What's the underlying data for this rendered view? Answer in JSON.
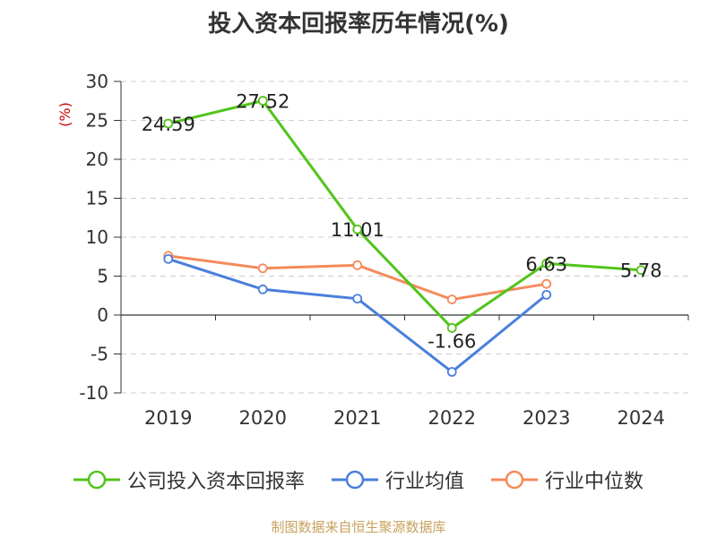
{
  "title": "投入资本回报率历年情况(%)",
  "source": "制图数据来自恒生聚源数据库",
  "colors": {
    "company": "#52c41a",
    "industry_avg": "#4a7fdc",
    "industry_median": "#f58a5b",
    "axis": "#333333",
    "grid": "#cccccc",
    "unit": "#cc0000"
  },
  "chart_data": {
    "type": "line",
    "title": "投入资本回报率历年情况(%)",
    "categories": [
      "2019",
      "2020",
      "2021",
      "2022",
      "2023",
      "2024"
    ],
    "ylabel": "(%)",
    "ylim": [
      -10,
      30
    ],
    "yticks": [
      30,
      25,
      20,
      15,
      10,
      5,
      0,
      -5,
      -10
    ],
    "grid": true,
    "legend_position": "bottom",
    "series": [
      {
        "name": "公司投入资本回报率",
        "values": [
          24.59,
          27.52,
          11.01,
          -1.66,
          6.63,
          5.78
        ],
        "labels": [
          "24.59",
          "27.52",
          "11.01",
          "-1.66",
          "6.63",
          "5.78"
        ]
      },
      {
        "name": "行业均值",
        "values": [
          7.2,
          3.3,
          2.1,
          -7.3,
          2.6,
          null
        ]
      },
      {
        "name": "行业中位数",
        "values": [
          7.6,
          6.0,
          6.4,
          2.0,
          4.0,
          null
        ]
      }
    ]
  }
}
